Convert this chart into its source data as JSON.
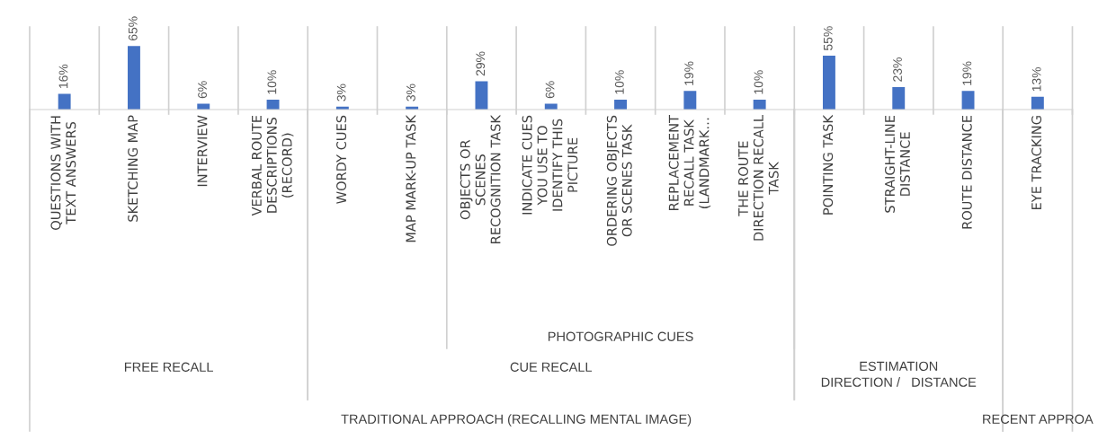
{
  "chart_data": {
    "type": "bar",
    "categories": [
      "QUESTIONS WITH TEXT ANSWERS",
      "SKETCHING MAP",
      "INTERVIEW",
      "VERBAL ROUTE DESCRIPTIONS (RECORD)",
      "WORDY CUES",
      "MAP MARK-UP TASK",
      "OBJECTS OR SCENES RECOGNITION TASK",
      "INDICATE CUES YOU USE TO IDENTIFY THIS PICTURE",
      "ORDERING OBJECTS OR SCENES TASK",
      "REPLACEMENT RECALL TASK (LANDMARK…",
      "THE ROUTE DIRECTION RECALL TASK",
      "POINTING TASK",
      "STRAIGHT-LINE DISTANCE",
      "ROUTE DISTANCE",
      "EYE TRACKING"
    ],
    "values": [
      16,
      65,
      6,
      10,
      3,
      3,
      29,
      6,
      10,
      19,
      10,
      55,
      23,
      19,
      13
    ],
    "value_labels": [
      "16%",
      "65%",
      "6%",
      "10%",
      "3%",
      "3%",
      "29%",
      "6%",
      "10%",
      "19%",
      "10%",
      "55%",
      "23%",
      "19%",
      "13%"
    ],
    "color": "#4472c4",
    "annotations": [
      "PHOTOGRAPHIC CUES",
      "FREE RECALL",
      "CUE RECALL",
      "ESTIMATION\nDIRECTION /   DISTANCE",
      "TRADITIONAL APPROACH (RECALLING MENTAL IMAGE)",
      "RECENT APPROA"
    ]
  }
}
